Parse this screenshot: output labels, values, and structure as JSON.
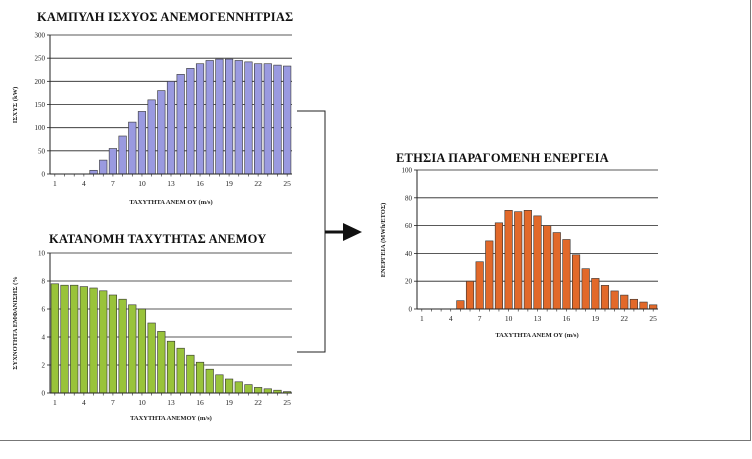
{
  "caption": "",
  "connector": {
    "arrow": "right-arrow"
  },
  "chart_data": [
    {
      "id": "power",
      "type": "bar",
      "title": "ΚΑΜΠΥΛΗ ΙΣΧΥΟΣ ΑΝΕΜΟΓΕΝΝΗΤΡΙΑΣ",
      "xlabel": "ΤΑΧΥΤΗΤΑ ΑΝΕΜ ΟΥ (m/s)",
      "ylabel": "ΙΣΧΥΣ (kW)",
      "ylim": [
        0,
        300
      ],
      "yticks": [
        "0",
        "50",
        "100",
        "150",
        "200",
        "250",
        "300"
      ],
      "xtick_labels": [
        "1",
        "4",
        "7",
        "10",
        "13",
        "16",
        "19",
        "22",
        "25"
      ],
      "grid": true,
      "bar_color": "#9a9ae0",
      "categories": [
        "1",
        "2",
        "3",
        "4",
        "5",
        "6",
        "7",
        "8",
        "9",
        "10",
        "11",
        "12",
        "13",
        "14",
        "15",
        "16",
        "17",
        "18",
        "19",
        "20",
        "21",
        "22",
        "23",
        "24",
        "25"
      ],
      "values": [
        0,
        0,
        0,
        0,
        8,
        30,
        55,
        82,
        112,
        135,
        160,
        180,
        200,
        215,
        228,
        238,
        245,
        248,
        248,
        245,
        242,
        238,
        238,
        235,
        233
      ]
    },
    {
      "id": "wind",
      "type": "bar",
      "title": "ΚΑΤΑΝΟΜΗ ΤΑΧΥΤΗΤΑΣ ΑΝΕΜΟΥ",
      "xlabel": "ΤΑΧΥΤΗΤΑ ΑΝΕΜΟΥ (m/s)",
      "ylabel": "ΣΥΧΝΟΤΗΤΑ ΕΜΦΑΝΙΣΗΣ (%",
      "ylim": [
        0,
        10
      ],
      "yticks": [
        "0",
        "2",
        "4",
        "6",
        "8",
        "10"
      ],
      "xtick_labels": [
        "1",
        "4",
        "7",
        "10",
        "13",
        "16",
        "19",
        "22",
        "25"
      ],
      "grid": true,
      "bar_color": "#99c33a",
      "categories": [
        "1",
        "2",
        "3",
        "4",
        "5",
        "6",
        "7",
        "8",
        "9",
        "10",
        "11",
        "12",
        "13",
        "14",
        "15",
        "16",
        "17",
        "18",
        "19",
        "20",
        "21",
        "22",
        "23",
        "24",
        "25"
      ],
      "values": [
        7.8,
        7.7,
        7.7,
        7.6,
        7.5,
        7.3,
        7.0,
        6.7,
        6.3,
        6.0,
        5.0,
        4.4,
        3.7,
        3.2,
        2.7,
        2.2,
        1.7,
        1.3,
        1.0,
        0.8,
        0.6,
        0.4,
        0.3,
        0.2,
        0.1
      ]
    },
    {
      "id": "energy",
      "type": "bar",
      "title": "ΕΤΗΣΙΑ ΠΑΡΑΓΟΜΕΝΗ ΕΝΕΡΓΕΙΑ",
      "xlabel": "ΤΑΧΥΤΗΤΑ ΑΝΕΜ ΟΥ (m/s)",
      "ylabel": "ΕΝΕΡΓΕΙΑ (MWh/ΕΤΟΣ)",
      "ylim": [
        0,
        100
      ],
      "yticks": [
        "0",
        "20",
        "40",
        "60",
        "80",
        "100"
      ],
      "xtick_labels": [
        "1",
        "4",
        "7",
        "10",
        "13",
        "16",
        "19",
        "22",
        "25"
      ],
      "grid": true,
      "bar_color": "#e2692a",
      "categories": [
        "1",
        "2",
        "3",
        "4",
        "5",
        "6",
        "7",
        "8",
        "9",
        "10",
        "11",
        "12",
        "13",
        "14",
        "15",
        "16",
        "17",
        "18",
        "19",
        "20",
        "21",
        "22",
        "23",
        "24",
        "25"
      ],
      "values": [
        0,
        0,
        0,
        0,
        6,
        20,
        34,
        49,
        62,
        71,
        70,
        71,
        67,
        60,
        55,
        50,
        39,
        29,
        22,
        17,
        13,
        10,
        7,
        5,
        3
      ]
    }
  ]
}
